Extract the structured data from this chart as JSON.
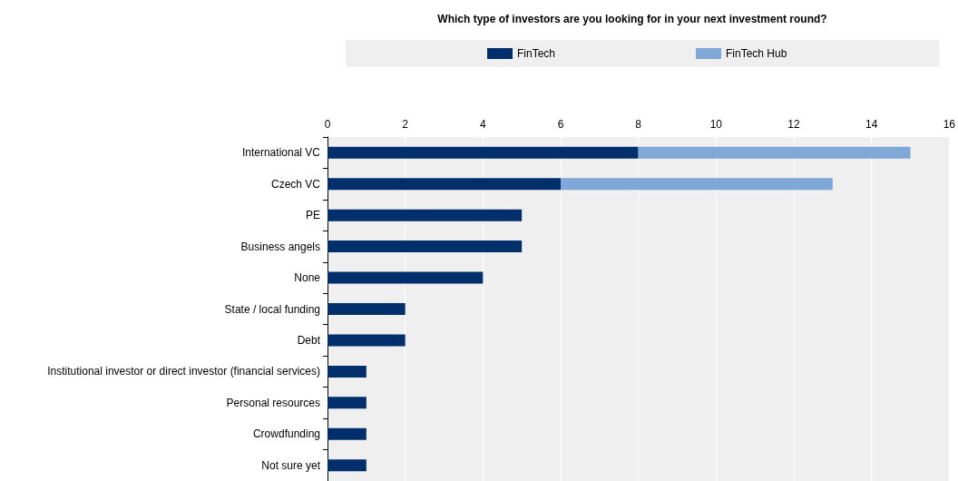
{
  "chart_data": {
    "type": "bar",
    "orientation": "horizontal",
    "stacked": true,
    "title": "Which type of investors are you looking for in your next investment round?",
    "categories": [
      "International VC",
      "Czech VC",
      "PE",
      "Business angels",
      "None",
      "State / local funding",
      "Debt",
      "Institutional investor or direct investor (financial services)",
      "Personal resources",
      "Crowdfunding",
      "Not sure yet"
    ],
    "series": [
      {
        "name": "FinTech",
        "color": "#002f6c",
        "values": [
          8,
          6,
          5,
          5,
          4,
          2,
          2,
          1,
          1,
          1,
          1
        ]
      },
      {
        "name": "FinTech Hub",
        "color": "#7fa8d9",
        "values": [
          7,
          7,
          0,
          0,
          0,
          0,
          0,
          0,
          0,
          0,
          0
        ]
      }
    ],
    "xlim": [
      0,
      16
    ],
    "xticks": [
      0,
      2,
      4,
      6,
      8,
      10,
      12,
      14,
      16
    ],
    "grid": "x",
    "legend": "top"
  }
}
